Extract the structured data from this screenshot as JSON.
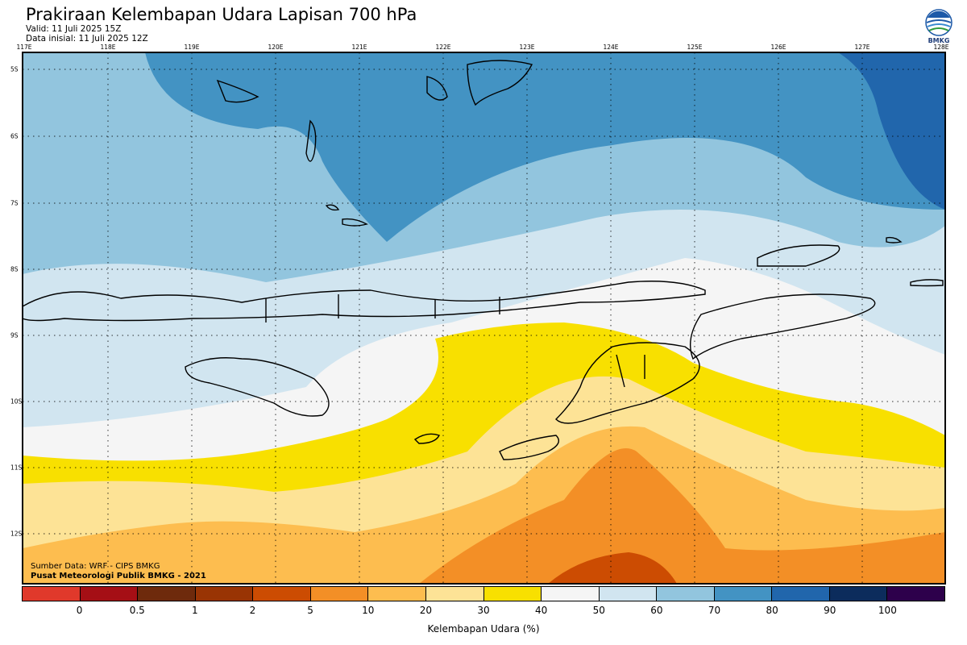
{
  "header": {
    "title": "Prakiraan Kelembapan Udara Lapisan 700 hPa",
    "valid": "Valid: 11 Juli 2025 15Z",
    "initial": "Data inisial: 11 Juli 2025 12Z",
    "logo_text": "BMKG"
  },
  "map": {
    "lon_labels": [
      "117E",
      "118E",
      "119E",
      "120E",
      "121E",
      "122E",
      "123E",
      "124E",
      "125E",
      "126E",
      "127E",
      "128E"
    ],
    "lat_labels": [
      "5S",
      "6S",
      "7S",
      "8S",
      "9S",
      "10S",
      "11S",
      "12S"
    ],
    "source_line1": "Sumber Data: WRF - CIPS BMKG",
    "source_line2": "Pusat Meteorologi Publik BMKG - 2021"
  },
  "colorbar": {
    "label": "Kelembapan Udara (%)",
    "ticks": [
      "0",
      "0.5",
      "1",
      "2",
      "5",
      "10",
      "20",
      "30",
      "40",
      "50",
      "60",
      "70",
      "80",
      "90",
      "100"
    ],
    "colors": [
      "#e0392b",
      "#a50f15",
      "#6e2a0c",
      "#993404",
      "#cc4c02",
      "#f38f26",
      "#fdbd4f",
      "#fde396",
      "#f8e000",
      "#f5f5f5",
      "#d1e5f0",
      "#92c5de",
      "#4393c3",
      "#2166ac",
      "#0c2c5c",
      "#2d004b"
    ]
  }
}
